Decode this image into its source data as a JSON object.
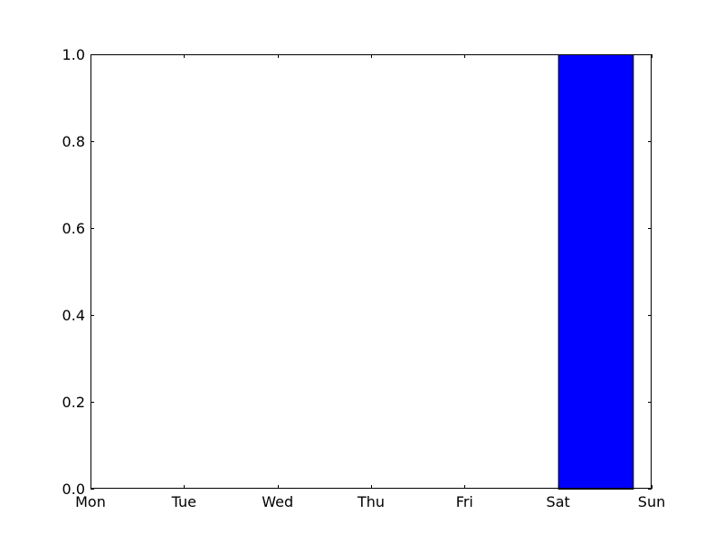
{
  "chart_data": {
    "type": "bar",
    "title": "",
    "xlabel": "",
    "ylabel": "",
    "categories": [
      "Mon",
      "Tue",
      "Wed",
      "Thu",
      "Fri",
      "Sat",
      "Sun"
    ],
    "values": [
      0,
      0,
      0,
      0,
      0,
      1.0,
      0
    ],
    "bar_color": "#0000ff",
    "edge_color": "#000000",
    "ylim": [
      0,
      1.0
    ],
    "yticks": [
      "0.0",
      "0.2",
      "0.4",
      "0.6",
      "0.8",
      "1.0"
    ],
    "grid": false,
    "legend": false
  }
}
